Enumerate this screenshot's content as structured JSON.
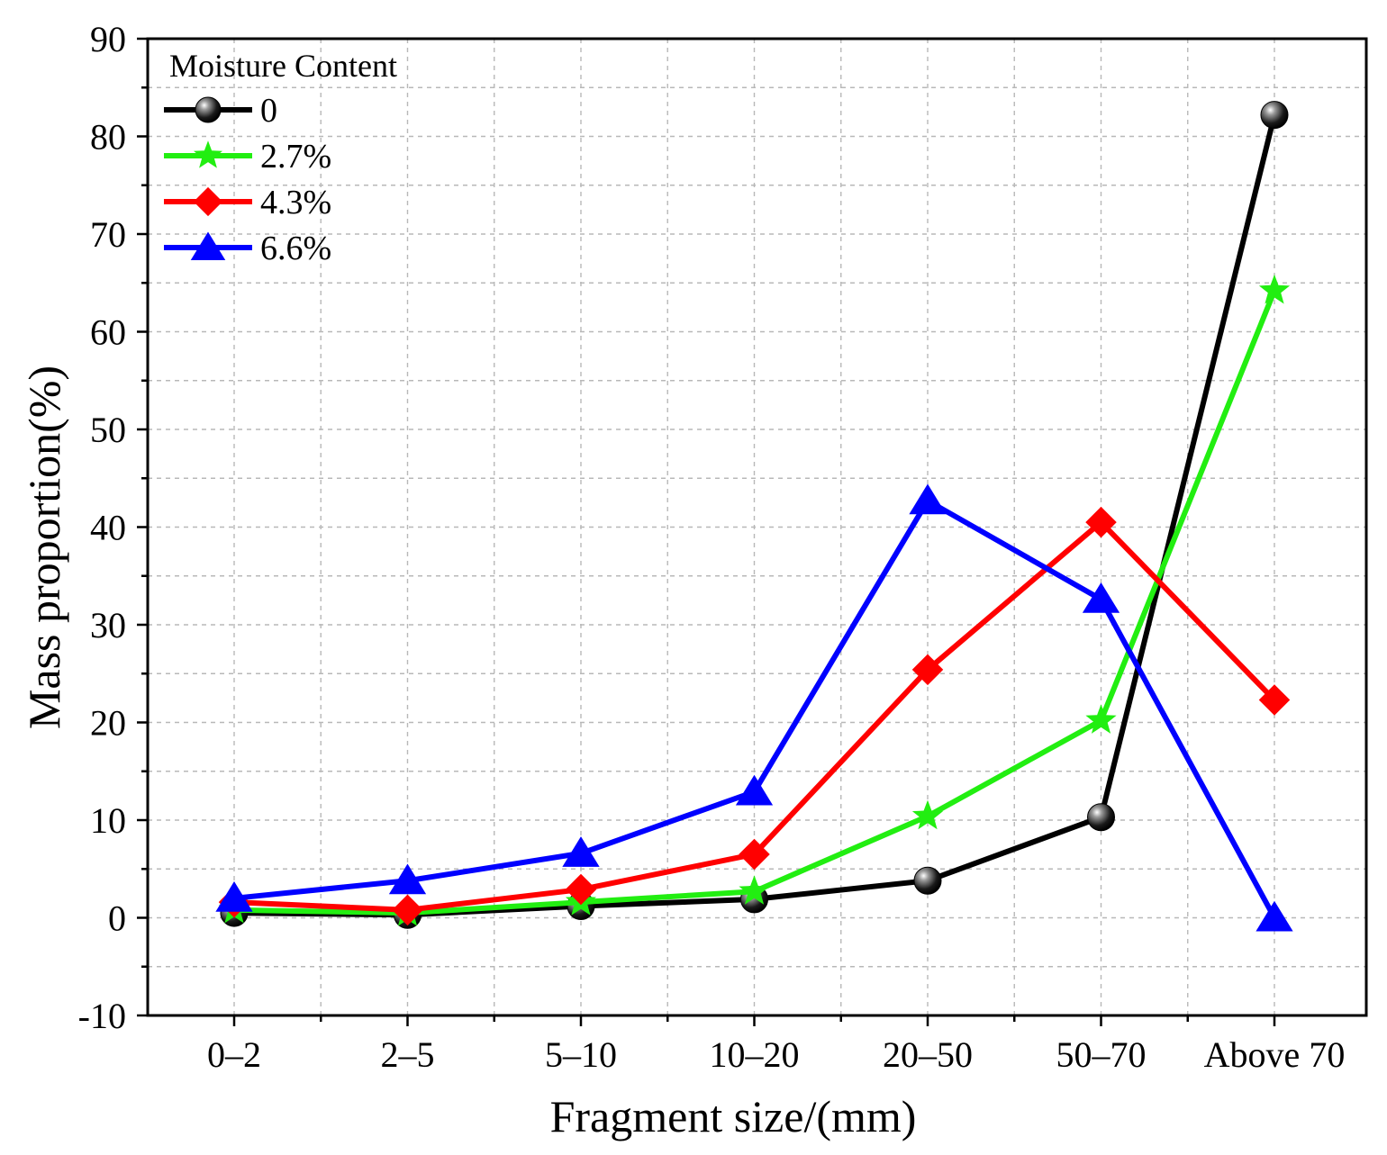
{
  "chart_data": {
    "type": "line",
    "title": "",
    "xlabel": "Fragment size/(mm)",
    "ylabel": "Mass proportion(%)",
    "categories": [
      "0–2",
      "2–5",
      "5–10",
      "10–20",
      "20–50",
      "50–70",
      "Above 70"
    ],
    "ylim": [
      -10,
      90
    ],
    "yticks": [
      -10,
      0,
      10,
      20,
      30,
      40,
      50,
      60,
      70,
      80,
      90
    ],
    "grid": true,
    "legend": {
      "title": "Moisture Content",
      "position": "top-left"
    },
    "series": [
      {
        "name": "0",
        "color": "#000000",
        "marker": "sphere",
        "values": [
          0.5,
          0.3,
          1.2,
          1.9,
          3.8,
          10.3,
          82.2
        ]
      },
      {
        "name": "2.7%",
        "color": "#22ee11",
        "marker": "star",
        "values": [
          0.8,
          0.5,
          1.6,
          2.7,
          10.4,
          20.2,
          64.2
        ]
      },
      {
        "name": "4.3%",
        "color": "#ff0000",
        "marker": "diamond",
        "values": [
          1.6,
          0.8,
          2.9,
          6.5,
          25.4,
          40.5,
          22.3
        ]
      },
      {
        "name": "6.6%",
        "color": "#0000ff",
        "marker": "triangle",
        "values": [
          2.0,
          3.8,
          6.6,
          12.9,
          42.7,
          32.6,
          0.0
        ]
      }
    ]
  }
}
